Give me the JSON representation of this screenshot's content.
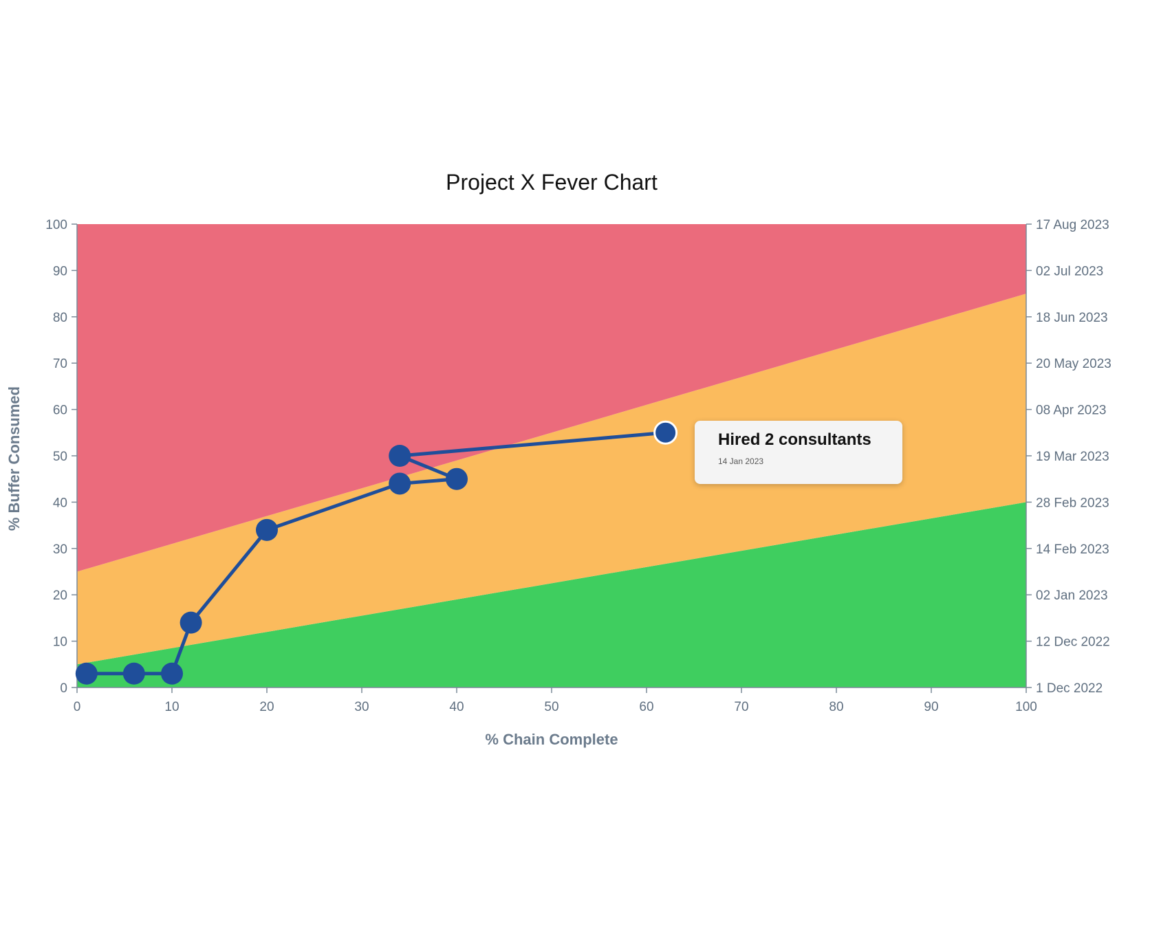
{
  "chart_data": {
    "type": "line",
    "title": "Project X Fever Chart",
    "xlabel": "% Chain Complete",
    "ylabel": "% Buffer Consumed",
    "xlim": [
      0,
      100
    ],
    "ylim": [
      0,
      100
    ],
    "x_ticks": [
      "0",
      "10",
      "20",
      "30",
      "40",
      "50",
      "60",
      "70",
      "80",
      "90",
      "100"
    ],
    "y_ticks": [
      "0",
      "10",
      "20",
      "30",
      "40",
      "50",
      "60",
      "70",
      "80",
      "90",
      "100"
    ],
    "y2_ticks": [
      "1 Dec 2022",
      "12 Dec 2022",
      "02 Jan 2023",
      "14 Feb 2023",
      "28 Feb 2023",
      "19 Mar 2023",
      "08 Apr 2023",
      "20 May 2023",
      "18 Jun 2023",
      "02 Jul 2023",
      "17 Aug 2023"
    ],
    "zones": [
      {
        "name": "green",
        "color": "#3fce5f",
        "lower": [
          [
            0,
            0
          ],
          [
            100,
            0
          ]
        ],
        "upper": [
          [
            0,
            5
          ],
          [
            100,
            40
          ]
        ]
      },
      {
        "name": "yellow",
        "color": "#fbbb5d",
        "lower": [
          [
            0,
            5
          ],
          [
            100,
            40
          ]
        ],
        "upper": [
          [
            0,
            25
          ],
          [
            100,
            85
          ]
        ]
      },
      {
        "name": "red",
        "color": "#eb6b7c",
        "lower": [
          [
            0,
            25
          ],
          [
            100,
            85
          ]
        ],
        "upper": [
          [
            0,
            100
          ],
          [
            100,
            100
          ]
        ]
      }
    ],
    "series": [
      {
        "color": "#1f4e9a",
        "points": [
          {
            "x": 1,
            "y": 3
          },
          {
            "x": 6,
            "y": 3
          },
          {
            "x": 10,
            "y": 3
          },
          {
            "x": 12,
            "y": 14
          },
          {
            "x": 20,
            "y": 34
          },
          {
            "x": 34,
            "y": 44
          },
          {
            "x": 40,
            "y": 45
          },
          {
            "x": 34,
            "y": 50
          },
          {
            "x": 62,
            "y": 55
          }
        ]
      }
    ],
    "highlighted_point": {
      "x": 62,
      "y": 55
    },
    "tooltip": {
      "title": "Hired 2 consultants",
      "date": "14 Jan 2023"
    },
    "grid": false,
    "legend": "none"
  }
}
